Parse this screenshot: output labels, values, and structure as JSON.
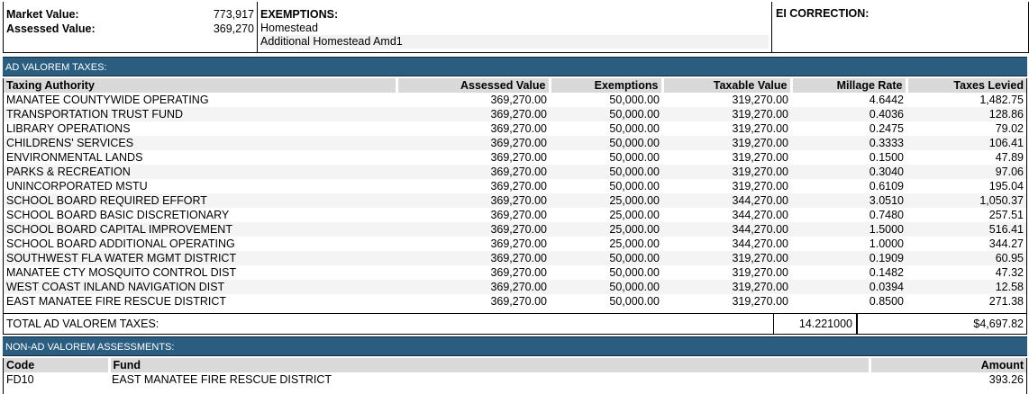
{
  "summary": {
    "market_value_label": "Market Value:",
    "market_value": "773,917",
    "assessed_value_label": "Assessed Value:",
    "assessed_value": "369,270",
    "exemptions_title": "EXEMPTIONS:",
    "exemptions": [
      "Homestead",
      "Additional Homestead Amd1"
    ],
    "ei_correction_label": "EI CORRECTION:"
  },
  "ad_valorem": {
    "section_title": "AD VALOREM TAXES:",
    "headers": [
      "Taxing Authority",
      "Assessed Value",
      "Exemptions",
      "Taxable Value",
      "Millage Rate",
      "Taxes Levied"
    ],
    "rows": [
      [
        "MANATEE COUNTYWIDE OPERATING",
        "369,270.00",
        "50,000.00",
        "319,270.00",
        "4.6442",
        "1,482.75"
      ],
      [
        "TRANSPORTATION TRUST FUND",
        "369,270.00",
        "50,000.00",
        "319,270.00",
        "0.4036",
        "128.86"
      ],
      [
        "LIBRARY OPERATIONS",
        "369,270.00",
        "50,000.00",
        "319,270.00",
        "0.2475",
        "79.02"
      ],
      [
        "CHILDRENS' SERVICES",
        "369,270.00",
        "50,000.00",
        "319,270.00",
        "0.3333",
        "106.41"
      ],
      [
        "ENVIRONMENTAL LANDS",
        "369,270.00",
        "50,000.00",
        "319,270.00",
        "0.1500",
        "47.89"
      ],
      [
        "PARKS & RECREATION",
        "369,270.00",
        "50,000.00",
        "319,270.00",
        "0.3040",
        "97.06"
      ],
      [
        "UNINCORPORATED MSTU",
        "369,270.00",
        "50,000.00",
        "319,270.00",
        "0.6109",
        "195.04"
      ],
      [
        "SCHOOL BOARD REQUIRED EFFORT",
        "369,270.00",
        "25,000.00",
        "344,270.00",
        "3.0510",
        "1,050.37"
      ],
      [
        "SCHOOL BOARD BASIC DISCRETIONARY",
        "369,270.00",
        "25,000.00",
        "344,270.00",
        "0.7480",
        "257.51"
      ],
      [
        "SCHOOL BOARD CAPITAL IMPROVEMENT",
        "369,270.00",
        "25,000.00",
        "344,270.00",
        "1.5000",
        "516.41"
      ],
      [
        "SCHOOL BOARD ADDITIONAL OPERATING",
        "369,270.00",
        "25,000.00",
        "344,270.00",
        "1.0000",
        "344.27"
      ],
      [
        "SOUTHWEST FLA WATER MGMT DISTRICT",
        "369,270.00",
        "50,000.00",
        "319,270.00",
        "0.1909",
        "60.95"
      ],
      [
        "MANATEE CTY MOSQUITO CONTROL DIST",
        "369,270.00",
        "50,000.00",
        "319,270.00",
        "0.1482",
        "47.32"
      ],
      [
        "WEST COAST INLAND NAVIGATION DIST",
        "369,270.00",
        "50,000.00",
        "319,270.00",
        "0.0394",
        "12.58"
      ],
      [
        "EAST MANATEE FIRE RESCUE DISTRICT",
        "369,270.00",
        "50,000.00",
        "319,270.00",
        "0.8500",
        "271.38"
      ]
    ],
    "total_label": "TOTAL AD VALOREM TAXES:",
    "total_millage": "14.221000",
    "total_levied": "$4,697.82"
  },
  "non_ad_valorem": {
    "section_title": "NON-AD VALOREM ASSESSMENTS:",
    "headers": [
      "Code",
      "Fund",
      "Amount"
    ],
    "rows": [
      [
        "FD10",
        "EAST MANATEE FIRE RESCUE DISTRICT",
        "393.26"
      ]
    ]
  }
}
